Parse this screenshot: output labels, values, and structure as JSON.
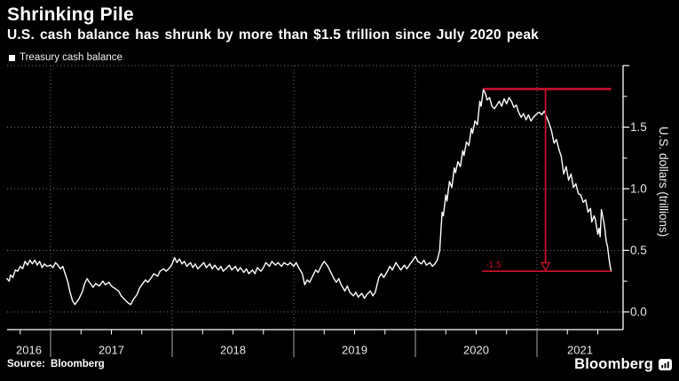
{
  "header": {
    "title": "Shrinking Pile",
    "subtitle": "U.S. cash balance has shrunk by more than $1.5 trillion since July 2020 peak"
  },
  "legend": {
    "label": "Treasury cash balance",
    "marker_color": "#ffffff"
  },
  "footer": {
    "source": "Source: Bloomberg",
    "brand": "Bloomberg"
  },
  "colors": {
    "background": "#000000",
    "text": "#f2f2f2",
    "tick_label": "#e8e8e8",
    "grid": "#757575",
    "year_divider": "#a8a8a8",
    "axis": "#ffffff",
    "series": "#ffffff",
    "annotation": "#c8102e"
  },
  "chart_data": {
    "type": "line",
    "title": "Shrinking Pile",
    "subtitle": "U.S. cash balance has shrunk by more than $1.5 trillion since July 2020 peak",
    "xlabel": "",
    "ylabel": "U.S. dollars (trillions)",
    "x_unit": "decimal year",
    "x_range": [
      2016.64,
      2021.71
    ],
    "ylim": [
      -0.14,
      2.0
    ],
    "grid": "dotted",
    "legend_position": "top-left",
    "x_year_ticks": [
      2016,
      2017,
      2018,
      2019,
      2020,
      2021
    ],
    "x_tick_labels": [
      "2016",
      "2017",
      "2018",
      "2019",
      "2020",
      "2021"
    ],
    "x_grid_years": [
      2017,
      2018,
      2019,
      2020,
      2021
    ],
    "x_minor_ticks": [
      2016.75,
      2017.0,
      2017.25,
      2017.5,
      2017.75,
      2018.0,
      2018.25,
      2018.5,
      2018.75,
      2019.0,
      2019.25,
      2019.5,
      2019.75,
      2020.0,
      2020.25,
      2020.5,
      2020.75,
      2021.0,
      2021.25,
      2021.5
    ],
    "y_major_ticks": [
      0.0,
      0.5,
      1.0,
      1.5,
      2.0
    ],
    "y_label_ticks": [
      0.0,
      0.5,
      1.0,
      1.5
    ],
    "y_minor_ticks": [
      0.25,
      0.75,
      1.25,
      1.75
    ],
    "annotation": {
      "color": "#c8102e",
      "label": "-1.5",
      "label_x": 2020.58,
      "peak_value": 1.81,
      "trough_value": 0.33,
      "peak_line_x": [
        2020.56,
        2021.61
      ],
      "trough_line_x": [
        2020.55,
        2021.61
      ],
      "arrow_x": 2021.07
    },
    "series": [
      {
        "name": "Treasury cash balance",
        "color": "#ffffff",
        "points": [
          [
            2016.64,
            0.27
          ],
          [
            2016.66,
            0.25
          ],
          [
            2016.67,
            0.3
          ],
          [
            2016.69,
            0.28
          ],
          [
            2016.71,
            0.34
          ],
          [
            2016.73,
            0.33
          ],
          [
            2016.75,
            0.37
          ],
          [
            2016.77,
            0.35
          ],
          [
            2016.79,
            0.41
          ],
          [
            2016.81,
            0.38
          ],
          [
            2016.83,
            0.42
          ],
          [
            2016.85,
            0.39
          ],
          [
            2016.87,
            0.42
          ],
          [
            2016.89,
            0.38
          ],
          [
            2016.91,
            0.41
          ],
          [
            2016.93,
            0.36
          ],
          [
            2016.95,
            0.39
          ],
          [
            2016.97,
            0.37
          ],
          [
            2017.0,
            0.38
          ],
          [
            2017.02,
            0.36
          ],
          [
            2017.04,
            0.4
          ],
          [
            2017.06,
            0.38
          ],
          [
            2017.08,
            0.35
          ],
          [
            2017.1,
            0.37
          ],
          [
            2017.12,
            0.31
          ],
          [
            2017.14,
            0.25
          ],
          [
            2017.16,
            0.16
          ],
          [
            2017.18,
            0.09
          ],
          [
            2017.2,
            0.06
          ],
          [
            2017.23,
            0.1
          ],
          [
            2017.26,
            0.16
          ],
          [
            2017.28,
            0.23
          ],
          [
            2017.3,
            0.27
          ],
          [
            2017.32,
            0.24
          ],
          [
            2017.35,
            0.2
          ],
          [
            2017.37,
            0.23
          ],
          [
            2017.4,
            0.21
          ],
          [
            2017.43,
            0.25
          ],
          [
            2017.45,
            0.22
          ],
          [
            2017.48,
            0.24
          ],
          [
            2017.5,
            0.21
          ],
          [
            2017.53,
            0.19
          ],
          [
            2017.56,
            0.17
          ],
          [
            2017.58,
            0.13
          ],
          [
            2017.61,
            0.1
          ],
          [
            2017.64,
            0.07
          ],
          [
            2017.66,
            0.06
          ],
          [
            2017.68,
            0.1
          ],
          [
            2017.71,
            0.14
          ],
          [
            2017.73,
            0.19
          ],
          [
            2017.75,
            0.22
          ],
          [
            2017.78,
            0.26
          ],
          [
            2017.8,
            0.24
          ],
          [
            2017.83,
            0.28
          ],
          [
            2017.85,
            0.31
          ],
          [
            2017.88,
            0.29
          ],
          [
            2017.9,
            0.33
          ],
          [
            2017.93,
            0.35
          ],
          [
            2017.95,
            0.33
          ],
          [
            2017.98,
            0.36
          ],
          [
            2018.0,
            0.39
          ],
          [
            2018.02,
            0.44
          ],
          [
            2018.04,
            0.4
          ],
          [
            2018.06,
            0.43
          ],
          [
            2018.08,
            0.39
          ],
          [
            2018.1,
            0.41
          ],
          [
            2018.12,
            0.37
          ],
          [
            2018.15,
            0.4
          ],
          [
            2018.17,
            0.36
          ],
          [
            2018.19,
            0.39
          ],
          [
            2018.21,
            0.35
          ],
          [
            2018.24,
            0.38
          ],
          [
            2018.26,
            0.4
          ],
          [
            2018.28,
            0.36
          ],
          [
            2018.31,
            0.39
          ],
          [
            2018.33,
            0.35
          ],
          [
            2018.35,
            0.38
          ],
          [
            2018.38,
            0.34
          ],
          [
            2018.4,
            0.37
          ],
          [
            2018.42,
            0.33
          ],
          [
            2018.45,
            0.36
          ],
          [
            2018.47,
            0.38
          ],
          [
            2018.49,
            0.34
          ],
          [
            2018.52,
            0.37
          ],
          [
            2018.54,
            0.33
          ],
          [
            2018.56,
            0.36
          ],
          [
            2018.59,
            0.32
          ],
          [
            2018.61,
            0.35
          ],
          [
            2018.63,
            0.31
          ],
          [
            2018.66,
            0.34
          ],
          [
            2018.68,
            0.31
          ],
          [
            2018.7,
            0.36
          ],
          [
            2018.73,
            0.33
          ],
          [
            2018.75,
            0.36
          ],
          [
            2018.77,
            0.4
          ],
          [
            2018.8,
            0.37
          ],
          [
            2018.82,
            0.41
          ],
          [
            2018.85,
            0.38
          ],
          [
            2018.87,
            0.4
          ],
          [
            2018.9,
            0.37
          ],
          [
            2018.92,
            0.4
          ],
          [
            2018.95,
            0.38
          ],
          [
            2018.97,
            0.4
          ],
          [
            2019.0,
            0.37
          ],
          [
            2019.02,
            0.4
          ],
          [
            2019.04,
            0.36
          ],
          [
            2019.07,
            0.31
          ],
          [
            2019.09,
            0.22
          ],
          [
            2019.11,
            0.26
          ],
          [
            2019.13,
            0.24
          ],
          [
            2019.16,
            0.3
          ],
          [
            2019.18,
            0.34
          ],
          [
            2019.2,
            0.32
          ],
          [
            2019.23,
            0.38
          ],
          [
            2019.25,
            0.41
          ],
          [
            2019.28,
            0.37
          ],
          [
            2019.3,
            0.33
          ],
          [
            2019.33,
            0.27
          ],
          [
            2019.35,
            0.24
          ],
          [
            2019.37,
            0.27
          ],
          [
            2019.39,
            0.22
          ],
          [
            2019.42,
            0.17
          ],
          [
            2019.44,
            0.21
          ],
          [
            2019.46,
            0.16
          ],
          [
            2019.49,
            0.13
          ],
          [
            2019.51,
            0.16
          ],
          [
            2019.53,
            0.12
          ],
          [
            2019.56,
            0.15
          ],
          [
            2019.58,
            0.11
          ],
          [
            2019.6,
            0.14
          ],
          [
            2019.63,
            0.17
          ],
          [
            2019.65,
            0.13
          ],
          [
            2019.67,
            0.16
          ],
          [
            2019.7,
            0.28
          ],
          [
            2019.72,
            0.31
          ],
          [
            2019.74,
            0.28
          ],
          [
            2019.77,
            0.33
          ],
          [
            2019.79,
            0.37
          ],
          [
            2019.81,
            0.34
          ],
          [
            2019.84,
            0.4
          ],
          [
            2019.86,
            0.37
          ],
          [
            2019.88,
            0.34
          ],
          [
            2019.91,
            0.38
          ],
          [
            2019.93,
            0.35
          ],
          [
            2019.95,
            0.38
          ],
          [
            2019.98,
            0.42
          ],
          [
            2020.0,
            0.45
          ],
          [
            2020.02,
            0.41
          ],
          [
            2020.05,
            0.39
          ],
          [
            2020.07,
            0.42
          ],
          [
            2020.09,
            0.38
          ],
          [
            2020.12,
            0.4
          ],
          [
            2020.14,
            0.37
          ],
          [
            2020.16,
            0.39
          ],
          [
            2020.18,
            0.42
          ],
          [
            2020.2,
            0.5
          ],
          [
            2020.22,
            0.81
          ],
          [
            2020.23,
            0.78
          ],
          [
            2020.25,
            0.95
          ],
          [
            2020.26,
            0.9
          ],
          [
            2020.28,
            1.06
          ],
          [
            2020.3,
            1.01
          ],
          [
            2020.32,
            1.17
          ],
          [
            2020.33,
            1.13
          ],
          [
            2020.35,
            1.22
          ],
          [
            2020.37,
            1.18
          ],
          [
            2020.39,
            1.31
          ],
          [
            2020.4,
            1.27
          ],
          [
            2020.42,
            1.38
          ],
          [
            2020.44,
            1.35
          ],
          [
            2020.46,
            1.49
          ],
          [
            2020.47,
            1.45
          ],
          [
            2020.49,
            1.55
          ],
          [
            2020.51,
            1.52
          ],
          [
            2020.53,
            1.71
          ],
          [
            2020.54,
            1.67
          ],
          [
            2020.56,
            1.81
          ],
          [
            2020.58,
            1.76
          ],
          [
            2020.59,
            1.72
          ],
          [
            2020.61,
            1.74
          ],
          [
            2020.63,
            1.67
          ],
          [
            2020.65,
            1.65
          ],
          [
            2020.67,
            1.68
          ],
          [
            2020.69,
            1.71
          ],
          [
            2020.71,
            1.67
          ],
          [
            2020.73,
            1.73
          ],
          [
            2020.75,
            1.69
          ],
          [
            2020.77,
            1.74
          ],
          [
            2020.79,
            1.71
          ],
          [
            2020.81,
            1.66
          ],
          [
            2020.83,
            1.68
          ],
          [
            2020.85,
            1.62
          ],
          [
            2020.87,
            1.58
          ],
          [
            2020.89,
            1.61
          ],
          [
            2020.91,
            1.56
          ],
          [
            2020.93,
            1.6
          ],
          [
            2020.95,
            1.55
          ],
          [
            2020.97,
            1.58
          ],
          [
            2021.0,
            1.61
          ],
          [
            2021.02,
            1.62
          ],
          [
            2021.04,
            1.6
          ],
          [
            2021.06,
            1.63
          ],
          [
            2021.08,
            1.58
          ],
          [
            2021.1,
            1.53
          ],
          [
            2021.12,
            1.47
          ],
          [
            2021.14,
            1.37
          ],
          [
            2021.16,
            1.4
          ],
          [
            2021.18,
            1.32
          ],
          [
            2021.2,
            1.26
          ],
          [
            2021.22,
            1.12
          ],
          [
            2021.24,
            1.18
          ],
          [
            2021.26,
            1.07
          ],
          [
            2021.28,
            1.12
          ],
          [
            2021.3,
            1.01
          ],
          [
            2021.32,
            1.04
          ],
          [
            2021.34,
            0.96
          ],
          [
            2021.36,
            0.95
          ],
          [
            2021.38,
            0.89
          ],
          [
            2021.4,
            0.91
          ],
          [
            2021.42,
            0.81
          ],
          [
            2021.44,
            0.84
          ],
          [
            2021.45,
            0.73
          ],
          [
            2021.47,
            0.78
          ],
          [
            2021.48,
            0.75
          ],
          [
            2021.5,
            0.63
          ],
          [
            2021.51,
            0.68
          ],
          [
            2021.52,
            0.61
          ],
          [
            2021.53,
            0.83
          ],
          [
            2021.55,
            0.73
          ],
          [
            2021.56,
            0.66
          ],
          [
            2021.57,
            0.57
          ],
          [
            2021.58,
            0.53
          ],
          [
            2021.59,
            0.45
          ],
          [
            2021.6,
            0.38
          ],
          [
            2021.61,
            0.33
          ]
        ]
      }
    ]
  }
}
